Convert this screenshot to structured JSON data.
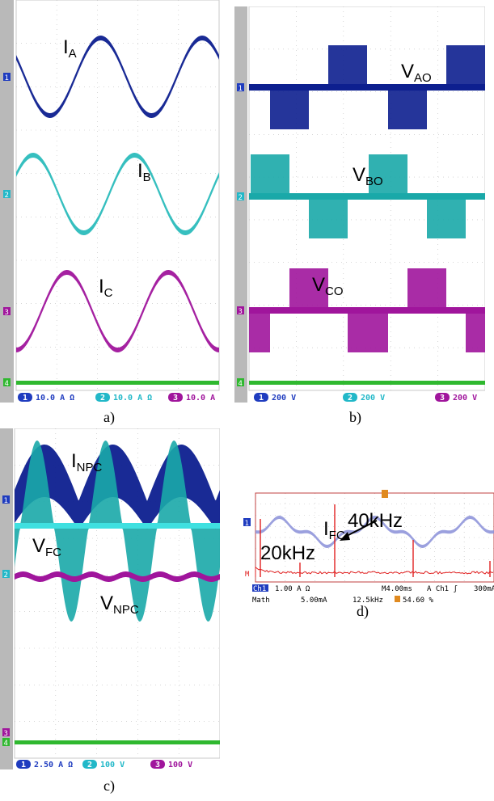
{
  "captions": {
    "a": "a)",
    "b": "b)",
    "c": "c)",
    "d": "d)"
  },
  "chart_data": [
    {
      "type": "line",
      "panel": "a",
      "series": [
        {
          "name": "IA",
          "label_main": "I",
          "label_sub": "A",
          "color": "#0d1f8f",
          "wave": "sine",
          "cycles": 2.0,
          "phase_deg": 150,
          "amplitude_div": 1.3,
          "channel": "1"
        },
        {
          "name": "IB",
          "label_main": "I",
          "label_sub": "B",
          "color": "#2bbcbc",
          "wave": "sine",
          "cycles": 2.0,
          "phase_deg": 30,
          "amplitude_div": 1.3,
          "channel": "2"
        },
        {
          "name": "IC",
          "label_main": "I",
          "label_sub": "C",
          "color": "#a0159c",
          "wave": "sine",
          "cycles": 2.0,
          "phase_deg": 270,
          "amplitude_div": 1.3,
          "channel": "3"
        }
      ],
      "scale_bar": [
        {
          "ch": "1",
          "text": "10.0 A Ω",
          "color": "#1f3cbf"
        },
        {
          "ch": "2",
          "text": "10.0 A Ω",
          "color": "#22b8c8"
        },
        {
          "ch": "3",
          "text": "10.0 A",
          "color": "#a0159c"
        }
      ],
      "grid": true
    },
    {
      "type": "line",
      "panel": "b",
      "series": [
        {
          "name": "VAO",
          "label_main": "V",
          "label_sub": "AO",
          "color": "#0d1f8f",
          "wave": "pwm",
          "cycles": 2.0,
          "phase_deg": 150,
          "channel": "1"
        },
        {
          "name": "VBO",
          "label_main": "V",
          "label_sub": "BO",
          "color": "#1aa8a8",
          "wave": "pwm",
          "cycles": 2.0,
          "phase_deg": 30,
          "channel": "2"
        },
        {
          "name": "VCO",
          "label_main": "V",
          "label_sub": "CO",
          "color": "#a0159c",
          "wave": "pwm",
          "cycles": 2.0,
          "phase_deg": 270,
          "channel": "3"
        }
      ],
      "scale_bar": [
        {
          "ch": "1",
          "text": "200 V",
          "color": "#1f3cbf"
        },
        {
          "ch": "2",
          "text": "200 V",
          "color": "#22b8c8"
        },
        {
          "ch": "3",
          "text": "200 V",
          "color": "#a0159c"
        }
      ],
      "grid": true
    },
    {
      "type": "line",
      "panel": "c",
      "series": [
        {
          "name": "INPC",
          "label_main": "I",
          "label_sub": "NPC",
          "color": "#0d1f8f",
          "wave": "rectified",
          "cycles": 3.0,
          "channel": "1"
        },
        {
          "name": "VFC",
          "label_main": "V",
          "label_sub": "FC",
          "color": "#1aa8a8",
          "wave": "bipolar",
          "cycles": 3.0,
          "channel": "2"
        },
        {
          "name": "VNPC",
          "label_main": "V",
          "label_sub": "NPC",
          "color": "#a0159c",
          "wave": "ripple",
          "cycles": 3.0,
          "channel": "3"
        }
      ],
      "scale_bar": [
        {
          "ch": "1",
          "text": "2.50 A Ω",
          "color": "#1f3cbf"
        },
        {
          "ch": "2",
          "text": "100 V",
          "color": "#22b8c8"
        },
        {
          "ch": "3",
          "text": "100 V",
          "color": "#a0159c"
        }
      ],
      "grid": true
    },
    {
      "type": "line",
      "panel": "d",
      "series": [
        {
          "name": "IFC",
          "label_main": "I",
          "label_sub": "FC",
          "color": "#8a8fd8",
          "wave": "sine-dist",
          "cycles": 2.5
        },
        {
          "name": "FFT",
          "color": "#e02020",
          "wave": "spectrum"
        }
      ],
      "annotations": [
        {
          "text": "40kHz"
        },
        {
          "text": "20kHz"
        }
      ],
      "scale_bar": {
        "ch1": "Ch1",
        "ch1_scale": "1.00 A Ω",
        "timebase": "M4.00ms",
        "trigger": "A  Ch1  ʃ",
        "trigger_level": "300mA",
        "math_label": "Math",
        "math_scale": "5.00mA",
        "math_freq": "12.5kHz",
        "math_pct": "54.60 %"
      },
      "markers": {
        "ch1_marker": "1",
        "math_marker": "M"
      },
      "grid": true
    }
  ]
}
